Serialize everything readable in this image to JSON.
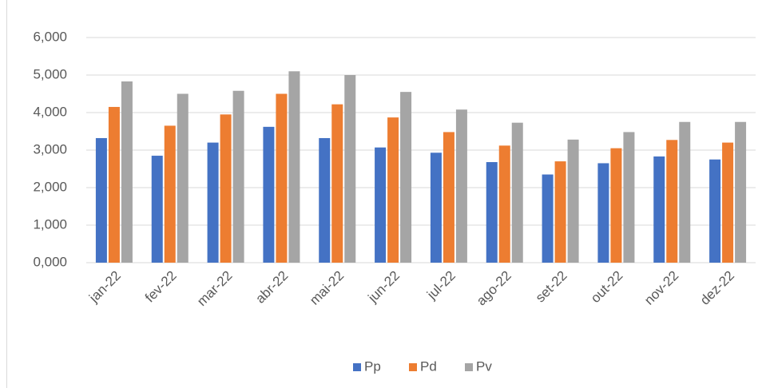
{
  "chart_data": {
    "type": "bar",
    "categories": [
      "jan-22",
      "fev-22",
      "mar-22",
      "abr-22",
      "mai-22",
      "jun-22",
      "jul-22",
      "ago-22",
      "set-22",
      "out-22",
      "nov-22",
      "dez-22"
    ],
    "series": [
      {
        "name": "Pp",
        "color": "#4472c4",
        "values": [
          3.32,
          2.85,
          3.2,
          3.62,
          3.32,
          3.07,
          2.93,
          2.68,
          2.35,
          2.65,
          2.83,
          2.75
        ]
      },
      {
        "name": "Pd",
        "color": "#ed7d31",
        "values": [
          4.15,
          3.65,
          3.95,
          4.5,
          4.22,
          3.87,
          3.48,
          3.12,
          2.7,
          3.05,
          3.27,
          3.2
        ]
      },
      {
        "name": "Pv",
        "color": "#a5a5a5",
        "values": [
          4.83,
          4.5,
          4.58,
          5.1,
          5.0,
          4.55,
          4.08,
          3.73,
          3.28,
          3.48,
          3.75,
          3.75
        ]
      }
    ],
    "ylim": [
      0,
      6
    ],
    "yticks": [
      {
        "value": 0,
        "label": "0,000"
      },
      {
        "value": 1,
        "label": "1,000"
      },
      {
        "value": 2,
        "label": "2,000"
      },
      {
        "value": 3,
        "label": "3,000"
      },
      {
        "value": 4,
        "label": "4,000"
      },
      {
        "value": 5,
        "label": "5,000"
      },
      {
        "value": 6,
        "label": "6,000"
      }
    ],
    "grid": true,
    "legend": "bottom"
  }
}
